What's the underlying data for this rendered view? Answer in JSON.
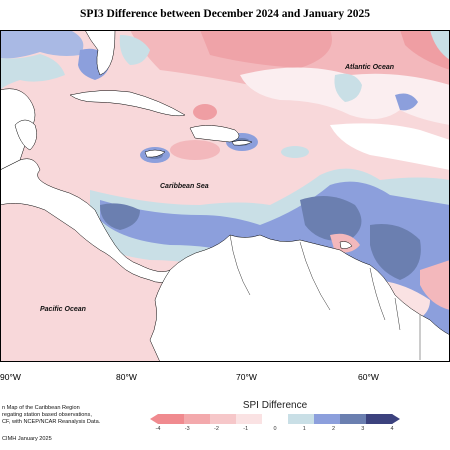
{
  "title": "SPI3 Difference between December 2024 and January 2025",
  "labels": {
    "atlantic": "Atlantic Ocean",
    "caribbean": "Caribbean Sea",
    "pacific": "Pacific Ocean"
  },
  "longitudes": [
    "90°W",
    "80°W",
    "70°W",
    "60°W"
  ],
  "notes": {
    "line1": "n Map of the Caribbean Region",
    "line2": "regating station based observations,",
    "line3": "CF, with NCEP/NCAR Reanalysis Data.",
    "credit": "CIMH January 2025"
  },
  "legend": {
    "title": "SPI Difference",
    "ticks": [
      "-4",
      "-3",
      "-2",
      "-1",
      "0",
      "1",
      "2",
      "3",
      "4"
    ],
    "colors": [
      "#f08a8f",
      "#f3a9ac",
      "#f6c7c9",
      "#fae2e3",
      "#ffffff",
      "#c9dfe6",
      "#8c9fdc",
      "#6b7fb0",
      "#3c427e"
    ]
  }
}
